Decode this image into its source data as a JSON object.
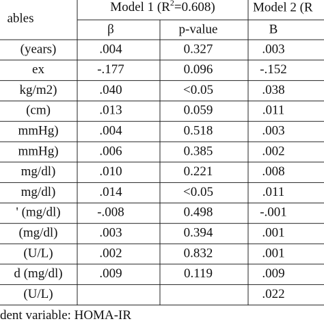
{
  "header": {
    "model1": {
      "prefix": "Model 1 (R",
      "sup": "2",
      "suffix": "=0.608)"
    },
    "model2": "Model 2 (R",
    "variable": "ables",
    "cols": [
      "β",
      "p-value",
      "B"
    ]
  },
  "rows": [
    {
      "label": "(years)",
      "beta": ".004",
      "p": "0.327",
      "b": ".003"
    },
    {
      "label": "ex",
      "beta": "-.177",
      "p": "0.096",
      "b": "-.152"
    },
    {
      "label": "kg/m2)",
      "beta": ".040",
      "p": "<0.05",
      "b": ".038"
    },
    {
      "label": "(cm)",
      "beta": ".013",
      "p": "0.059",
      "b": ".011"
    },
    {
      "label": "mmHg)",
      "beta": ".004",
      "p": "0.518",
      "b": ".003"
    },
    {
      "label": "mmHg)",
      "beta": ".006",
      "p": "0.385",
      "b": ".002"
    },
    {
      "label": "mg/dl)",
      "beta": ".010",
      "p": "0.221",
      "b": ".008"
    },
    {
      "label": "mg/dl)",
      "beta": ".014",
      "p": "<0.05",
      "b": ".011"
    },
    {
      "label": "' (mg/dl)",
      "beta": "-.008",
      "p": "0.498",
      "b": "-.001"
    },
    {
      "label": "(mg/dl)",
      "beta": ".003",
      "p": "0.394",
      "b": ".001"
    },
    {
      "label": "(U/L)",
      "beta": ".002",
      "p": "0.832",
      "b": ".001"
    },
    {
      "label": "d (mg/dl)",
      "beta": ".009",
      "p": "0.119",
      "b": ".009"
    },
    {
      "label": "(U/L)",
      "beta": "",
      "b": ".022"
    }
  ],
  "footer": "dent variable: HOMA-IR"
}
